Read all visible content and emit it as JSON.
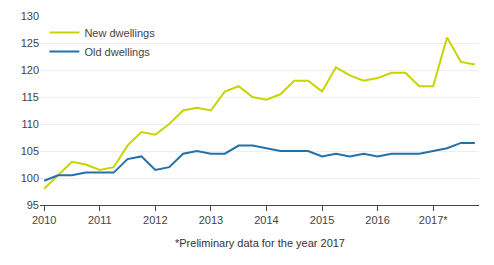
{
  "chart_data": {
    "type": "line",
    "categories": [
      "2010",
      null,
      null,
      null,
      "2011",
      null,
      null,
      null,
      "2012",
      null,
      null,
      null,
      "2013",
      null,
      null,
      null,
      "2014",
      null,
      null,
      null,
      "2015",
      null,
      null,
      null,
      "2016",
      null,
      null,
      null,
      "2017*",
      null,
      null,
      null
    ],
    "series": [
      {
        "name": "New dwellings",
        "color": "#c8d400",
        "values": [
          98.0,
          100.5,
          103.0,
          102.5,
          101.5,
          102.0,
          106.0,
          108.5,
          108.0,
          110.0,
          112.5,
          113.0,
          112.5,
          116.0,
          117.0,
          115.0,
          114.5,
          115.5,
          118.0,
          118.0,
          116.0,
          120.5,
          119.0,
          118.0,
          118.5,
          119.5,
          119.5,
          117.0,
          117.0,
          126.0,
          121.5,
          121.0
        ]
      },
      {
        "name": "Old dwellings",
        "color": "#2271a8",
        "values": [
          99.5,
          100.5,
          100.5,
          101.0,
          101.0,
          101.0,
          103.5,
          104.0,
          101.5,
          102.0,
          104.5,
          105.0,
          104.5,
          104.5,
          106.0,
          106.0,
          105.5,
          105.0,
          105.0,
          105.0,
          104.0,
          104.5,
          104.0,
          104.5,
          104.0,
          104.5,
          104.5,
          104.5,
          105.0,
          105.5,
          106.5,
          106.5
        ]
      }
    ],
    "ylim": [
      95,
      130
    ],
    "yticks": [
      95,
      100,
      105,
      110,
      115,
      120,
      125,
      130
    ],
    "grid": true,
    "legend": "upper left",
    "annotations": [
      "*Preliminary data for the year 2017"
    ]
  }
}
